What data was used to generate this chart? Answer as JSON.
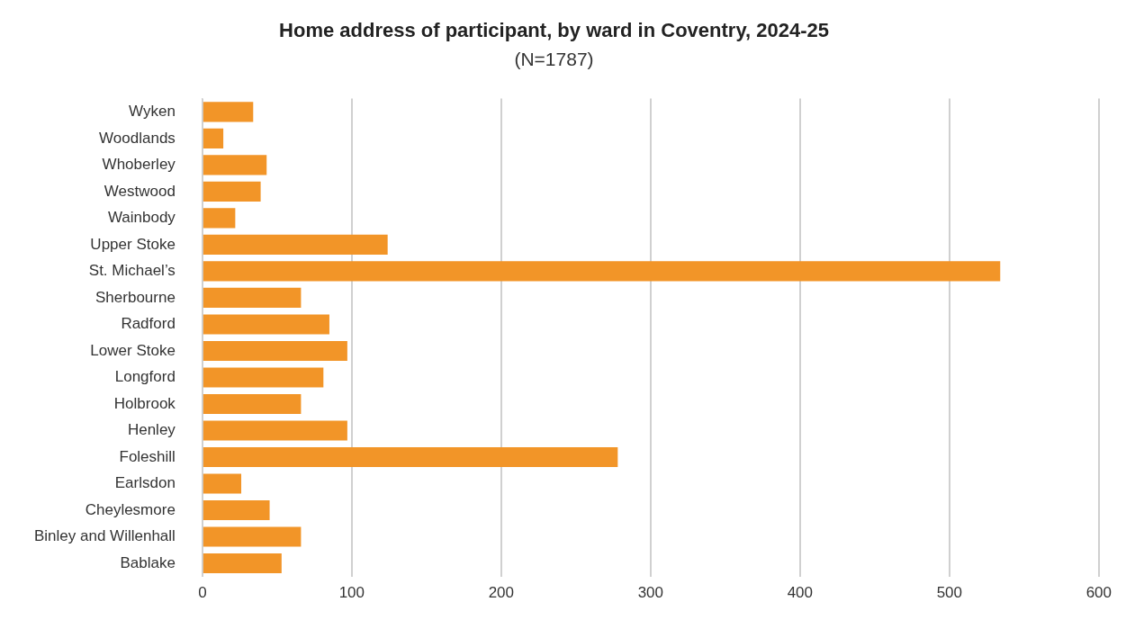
{
  "chart_data": {
    "type": "bar",
    "orientation": "horizontal",
    "title": "Home address of participant, by ward in Coventry, 2024-25",
    "subtitle": "(N=1787)",
    "categories": [
      "Wyken",
      "Woodlands",
      "Whoberley",
      "Westwood",
      "Wainbody",
      "Upper Stoke",
      "St. Michael’s",
      "Sherbourne",
      "Radford",
      "Lower Stoke",
      "Longford",
      "Holbrook",
      "Henley",
      "Foleshill",
      "Earlsdon",
      "Cheylesmore",
      "Binley and Willenhall",
      "Bablake"
    ],
    "values": [
      34,
      14,
      43,
      39,
      22,
      124,
      534,
      66,
      85,
      97,
      81,
      66,
      97,
      278,
      26,
      45,
      66,
      53
    ],
    "color": "#f29528",
    "xlim": [
      0,
      600
    ],
    "xticks": [
      0,
      100,
      200,
      300,
      400,
      500,
      600
    ],
    "grid": "x",
    "legend": false
  }
}
